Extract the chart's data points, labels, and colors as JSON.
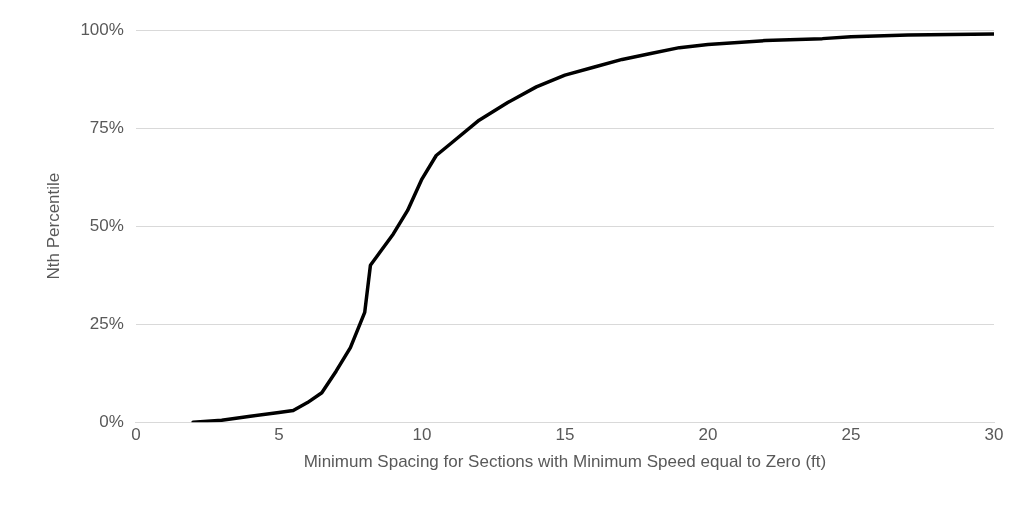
{
  "chart_data": {
    "type": "line",
    "xlabel": "Minimum Spacing for Sections with Minimum Speed equal to Zero (ft)",
    "ylabel": "Nth Percentile",
    "xlim": [
      0,
      30
    ],
    "xticks": [
      0,
      5,
      10,
      15,
      20,
      25,
      30
    ],
    "ylim": [
      0,
      100
    ],
    "yticks": [
      {
        "value": 0,
        "label": "0%"
      },
      {
        "value": 25,
        "label": "25%"
      },
      {
        "value": 50,
        "label": "50%"
      },
      {
        "value": 75,
        "label": "75%"
      },
      {
        "value": 100,
        "label": "100%"
      }
    ],
    "grid": "y",
    "legend": false,
    "marker": "none",
    "line_style": "solid",
    "series": [
      {
        "color": "#000000",
        "x": [
          2,
          3,
          4,
          5,
          5.5,
          6,
          6.5,
          7,
          7.5,
          8,
          8.2,
          8.5,
          9,
          9.5,
          10,
          10.5,
          11,
          12,
          13,
          14,
          15,
          16,
          17,
          18,
          19,
          20,
          22,
          24,
          25,
          27,
          30
        ],
        "values": [
          0,
          0.5,
          1.5,
          2.5,
          3,
          5,
          7.5,
          13,
          19,
          28,
          40,
          43,
          48,
          54,
          62,
          68,
          71,
          77,
          81.5,
          85.5,
          88.5,
          90.5,
          92.5,
          94,
          95.5,
          96.3,
          97.3,
          97.8,
          98.3,
          98.7,
          99
        ]
      }
    ]
  }
}
